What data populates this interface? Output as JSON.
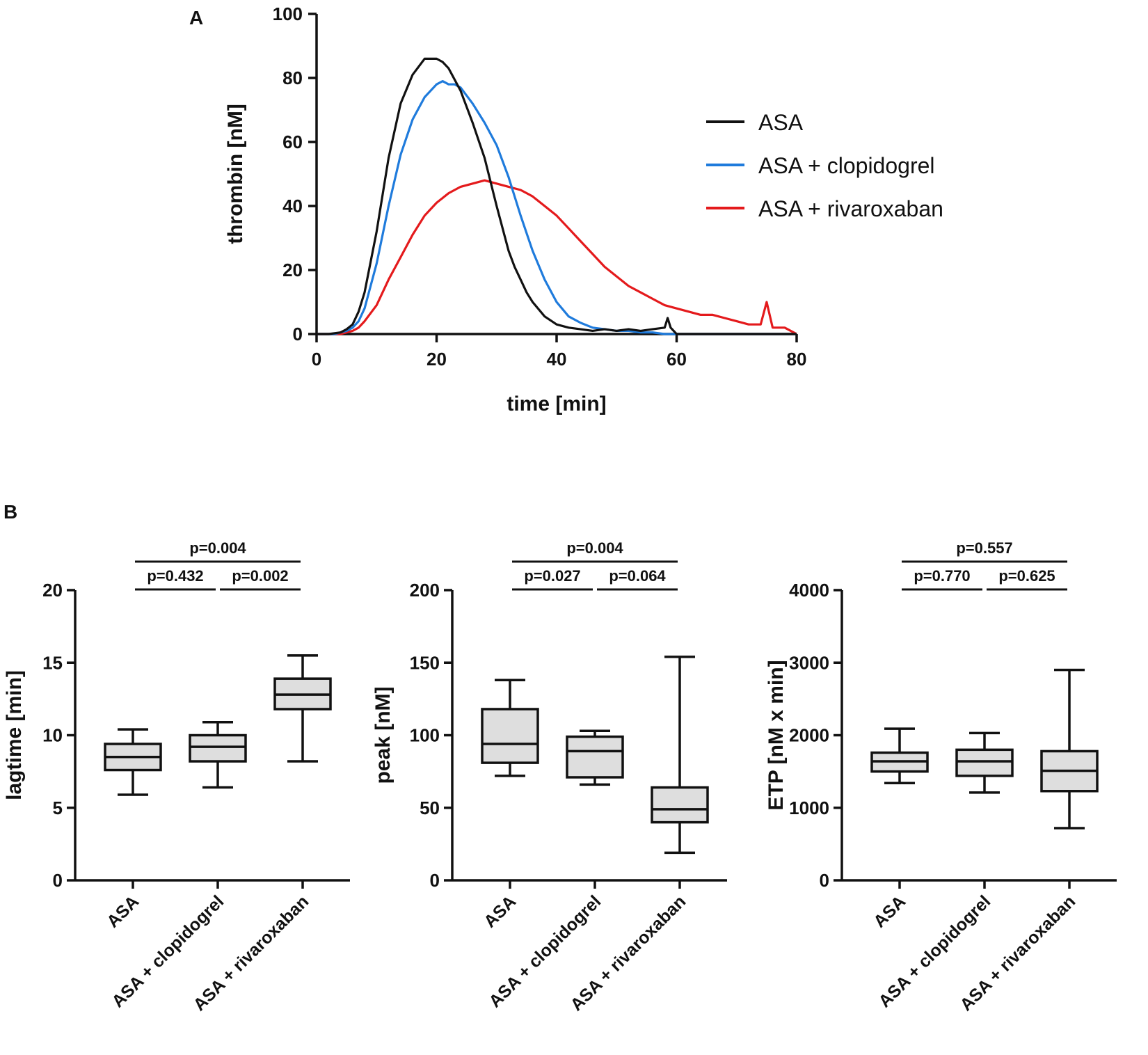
{
  "panels": {
    "a": "A",
    "b": "B"
  },
  "chart_data": [
    {
      "type": "line",
      "panel": "A",
      "xlabel": "time [min]",
      "ylabel": "thrombin [nM]",
      "xlim": [
        0,
        80
      ],
      "ylim": [
        0,
        100
      ],
      "xticks": [
        0,
        20,
        40,
        60,
        80
      ],
      "yticks": [
        0,
        20,
        40,
        60,
        80,
        100
      ],
      "legend_position": "right",
      "series": [
        {
          "name": "ASA",
          "color": "#111111",
          "x": [
            0,
            2,
            4,
            5,
            6,
            7,
            8,
            10,
            12,
            14,
            16,
            18,
            19,
            20,
            21,
            22,
            24,
            26,
            28,
            30,
            32,
            33,
            34,
            35,
            36,
            38,
            40,
            42,
            44,
            46,
            48,
            50,
            52,
            54,
            56,
            58,
            58.5,
            59,
            60,
            62,
            64,
            66,
            68,
            70,
            72,
            74,
            76,
            78,
            80
          ],
          "y": [
            0,
            0,
            0.5,
            1.5,
            3,
            7,
            13,
            32,
            55,
            72,
            81,
            86,
            86,
            86,
            85,
            83,
            76,
            66,
            55,
            40,
            26,
            21,
            17,
            13,
            10,
            5.5,
            3,
            2,
            1.5,
            1,
            1.5,
            1,
            1.5,
            1,
            1.5,
            2,
            5,
            2,
            0,
            0,
            0,
            0,
            0,
            0,
            0,
            0,
            0,
            0,
            0
          ]
        },
        {
          "name": "ASA + clopidogrel",
          "color": "#1f7bdc",
          "x": [
            0,
            2,
            3,
            4,
            5,
            6,
            7,
            8,
            10,
            12,
            14,
            16,
            18,
            20,
            21,
            22,
            23,
            24,
            26,
            28,
            30,
            32,
            34,
            36,
            38,
            40,
            42,
            44,
            46,
            48,
            50,
            52,
            54,
            56,
            58,
            60,
            62,
            64,
            66,
            68,
            70,
            72,
            74,
            76,
            78,
            80
          ],
          "y": [
            0,
            0,
            0,
            0.5,
            1,
            2,
            4,
            8,
            22,
            40,
            56,
            67,
            74,
            78,
            79,
            78,
            78,
            77,
            72,
            66,
            59,
            49,
            37,
            26,
            17,
            10,
            5.5,
            3.5,
            2,
            1.5,
            1,
            1,
            0.5,
            0.5,
            0,
            0,
            0,
            0,
            0,
            0,
            0,
            0,
            0,
            0,
            0,
            0
          ]
        },
        {
          "name": "ASA + rivaroxaban",
          "color": "#e41a1c",
          "x": [
            0,
            1,
            2,
            3,
            4,
            5,
            6,
            7,
            8,
            10,
            12,
            14,
            16,
            18,
            20,
            22,
            24,
            26,
            28,
            30,
            32,
            34,
            36,
            38,
            40,
            42,
            44,
            46,
            48,
            50,
            52,
            54,
            56,
            58,
            60,
            62,
            64,
            66,
            68,
            70,
            72,
            74,
            75,
            76,
            78,
            80
          ],
          "y": [
            0,
            0,
            0,
            0,
            0,
            0.5,
            1,
            2,
            4,
            9,
            17,
            24,
            31,
            37,
            41,
            44,
            46,
            47,
            48,
            47,
            46,
            45,
            43,
            40,
            37,
            33,
            29,
            25,
            21,
            18,
            15,
            13,
            11,
            9,
            8,
            7,
            6,
            6,
            5,
            4,
            3,
            3,
            10,
            2,
            2,
            0
          ]
        }
      ]
    },
    {
      "type": "box",
      "panel": "B-left",
      "ylabel": "lagtime [min]",
      "ylim": [
        0,
        20
      ],
      "yticks": [
        0,
        5,
        10,
        15,
        20
      ],
      "categories": [
        "ASA",
        "ASA + clopidogrel",
        "ASA + rivaroxaban"
      ],
      "boxes": [
        {
          "min": 5.9,
          "q1": 7.6,
          "median": 8.5,
          "q3": 9.4,
          "max": 10.4
        },
        {
          "min": 6.4,
          "q1": 8.2,
          "median": 9.2,
          "q3": 10.0,
          "max": 10.9
        },
        {
          "min": 8.2,
          "q1": 11.8,
          "median": 12.8,
          "q3": 13.9,
          "max": 15.5
        }
      ],
      "comparisons": [
        {
          "from": 0,
          "to": 1,
          "label": "p=0.432",
          "level": 0
        },
        {
          "from": 1,
          "to": 2,
          "label": "p=0.002",
          "level": 0
        },
        {
          "from": 0,
          "to": 2,
          "label": "p=0.004",
          "level": 1
        }
      ]
    },
    {
      "type": "box",
      "panel": "B-middle",
      "ylabel": "peak [nM]",
      "ylim": [
        0,
        200
      ],
      "yticks": [
        0,
        50,
        100,
        150,
        200
      ],
      "categories": [
        "ASA",
        "ASA + clopidogrel",
        "ASA + rivaroxaban"
      ],
      "boxes": [
        {
          "min": 72,
          "q1": 81,
          "median": 94,
          "q3": 118,
          "max": 138
        },
        {
          "min": 66,
          "q1": 71,
          "median": 89,
          "q3": 99,
          "max": 103
        },
        {
          "min": 19,
          "q1": 40,
          "median": 49,
          "q3": 64,
          "max": 154
        }
      ],
      "comparisons": [
        {
          "from": 0,
          "to": 1,
          "label": "p=0.027",
          "level": 0
        },
        {
          "from": 1,
          "to": 2,
          "label": "p=0.064",
          "level": 0
        },
        {
          "from": 0,
          "to": 2,
          "label": "p=0.004",
          "level": 1
        }
      ]
    },
    {
      "type": "box",
      "panel": "B-right",
      "ylabel": "ETP  [nM x min]",
      "ylim": [
        0,
        4000
      ],
      "yticks": [
        0,
        1000,
        2000,
        3000,
        4000
      ],
      "categories": [
        "ASA",
        "ASA + clopidogrel",
        "ASA + rivaroxaban"
      ],
      "boxes": [
        {
          "min": 1340,
          "q1": 1500,
          "median": 1640,
          "q3": 1760,
          "max": 2090
        },
        {
          "min": 1210,
          "q1": 1440,
          "median": 1640,
          "q3": 1800,
          "max": 2030
        },
        {
          "min": 720,
          "q1": 1230,
          "median": 1510,
          "q3": 1780,
          "max": 2900
        }
      ],
      "comparisons": [
        {
          "from": 0,
          "to": 1,
          "label": "p=0.770",
          "level": 0
        },
        {
          "from": 1,
          "to": 2,
          "label": "p=0.625",
          "level": 0
        },
        {
          "from": 0,
          "to": 2,
          "label": "p=0.557",
          "level": 1
        }
      ]
    }
  ]
}
